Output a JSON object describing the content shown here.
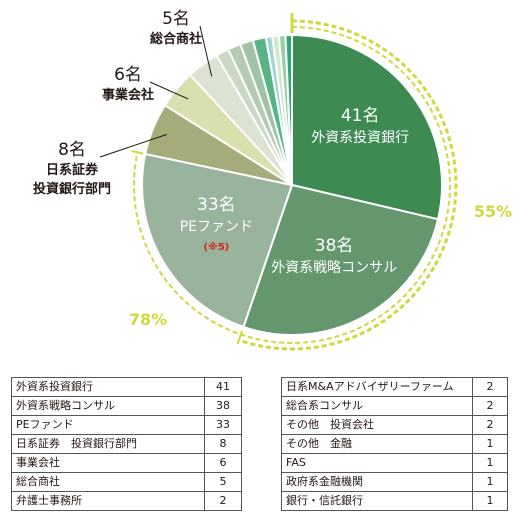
{
  "chart_data": {
    "type": "pie",
    "slices": [
      {
        "label": "外資系投資銀行",
        "value": 41,
        "pie_label": "41名",
        "color": "#3e8a53"
      },
      {
        "label": "外資系戦略コンサル",
        "value": 38,
        "pie_label": "38名",
        "color": "#65976f"
      },
      {
        "label": "PEファンド",
        "value": 33,
        "pie_label": "33名",
        "note": "(※5)",
        "color": "#99b39d"
      },
      {
        "label": "日系証券　投資銀行部門",
        "value": 8,
        "pie_label": "8名",
        "callout": [
          "日系証券",
          "投資銀行部門"
        ],
        "color": "#a5ab79"
      },
      {
        "label": "事業会社",
        "value": 6,
        "pie_label": "6名",
        "callout": [
          "事業会社"
        ],
        "color": "#d8e0ad"
      },
      {
        "label": "総合商社",
        "value": 5,
        "pie_label": "5名",
        "callout": [
          "総合商社"
        ],
        "color": "#dde3d3"
      },
      {
        "label": "弁護士事務所",
        "value": 2,
        "color": "#cbd8c5"
      },
      {
        "label": "日系M&Aアドバイザリーファーム",
        "value": 2,
        "color": "#b5cab3"
      },
      {
        "label": "総合系コンサル",
        "value": 2,
        "color": "#9ec4a5"
      },
      {
        "label": "その他　投資会社",
        "value": 2,
        "color": "#58b487"
      },
      {
        "label": "その他　金融",
        "value": 1,
        "color": "#a3d4da"
      },
      {
        "label": "FAS",
        "value": 1,
        "color": "#d4e8cc"
      },
      {
        "label": "政府系金融機関",
        "value": 1,
        "color": "#98cfa8"
      },
      {
        "label": "銀行・信託銀行",
        "value": 1,
        "color": "#2faa6f"
      }
    ],
    "brackets": [
      {
        "label": "55%",
        "color": "#cfd83e"
      },
      {
        "label": "78%",
        "color": "#cfd83e"
      }
    ]
  },
  "table": {
    "left": [
      {
        "name": "外資系投資銀行",
        "count": "41"
      },
      {
        "name": "外資系戦略コンサル",
        "count": "38"
      },
      {
        "name": "PEファンド",
        "count": "33"
      },
      {
        "name": "日系証券　投資銀行部門",
        "count": "8"
      },
      {
        "name": "事業会社",
        "count": "6"
      },
      {
        "name": "総合商社",
        "count": "5"
      },
      {
        "name": "弁護士事務所",
        "count": "2"
      }
    ],
    "right": [
      {
        "name": "日系M&Aアドバイザリーファーム",
        "count": "2"
      },
      {
        "name": "総合系コンサル",
        "count": "2"
      },
      {
        "name": "その他　投資会社",
        "count": "2"
      },
      {
        "name": "その他　金融",
        "count": "1"
      },
      {
        "name": "FAS",
        "count": "1"
      },
      {
        "name": "政府系金融機関",
        "count": "1"
      },
      {
        "name": "銀行・信託銀行",
        "count": "1"
      }
    ]
  }
}
